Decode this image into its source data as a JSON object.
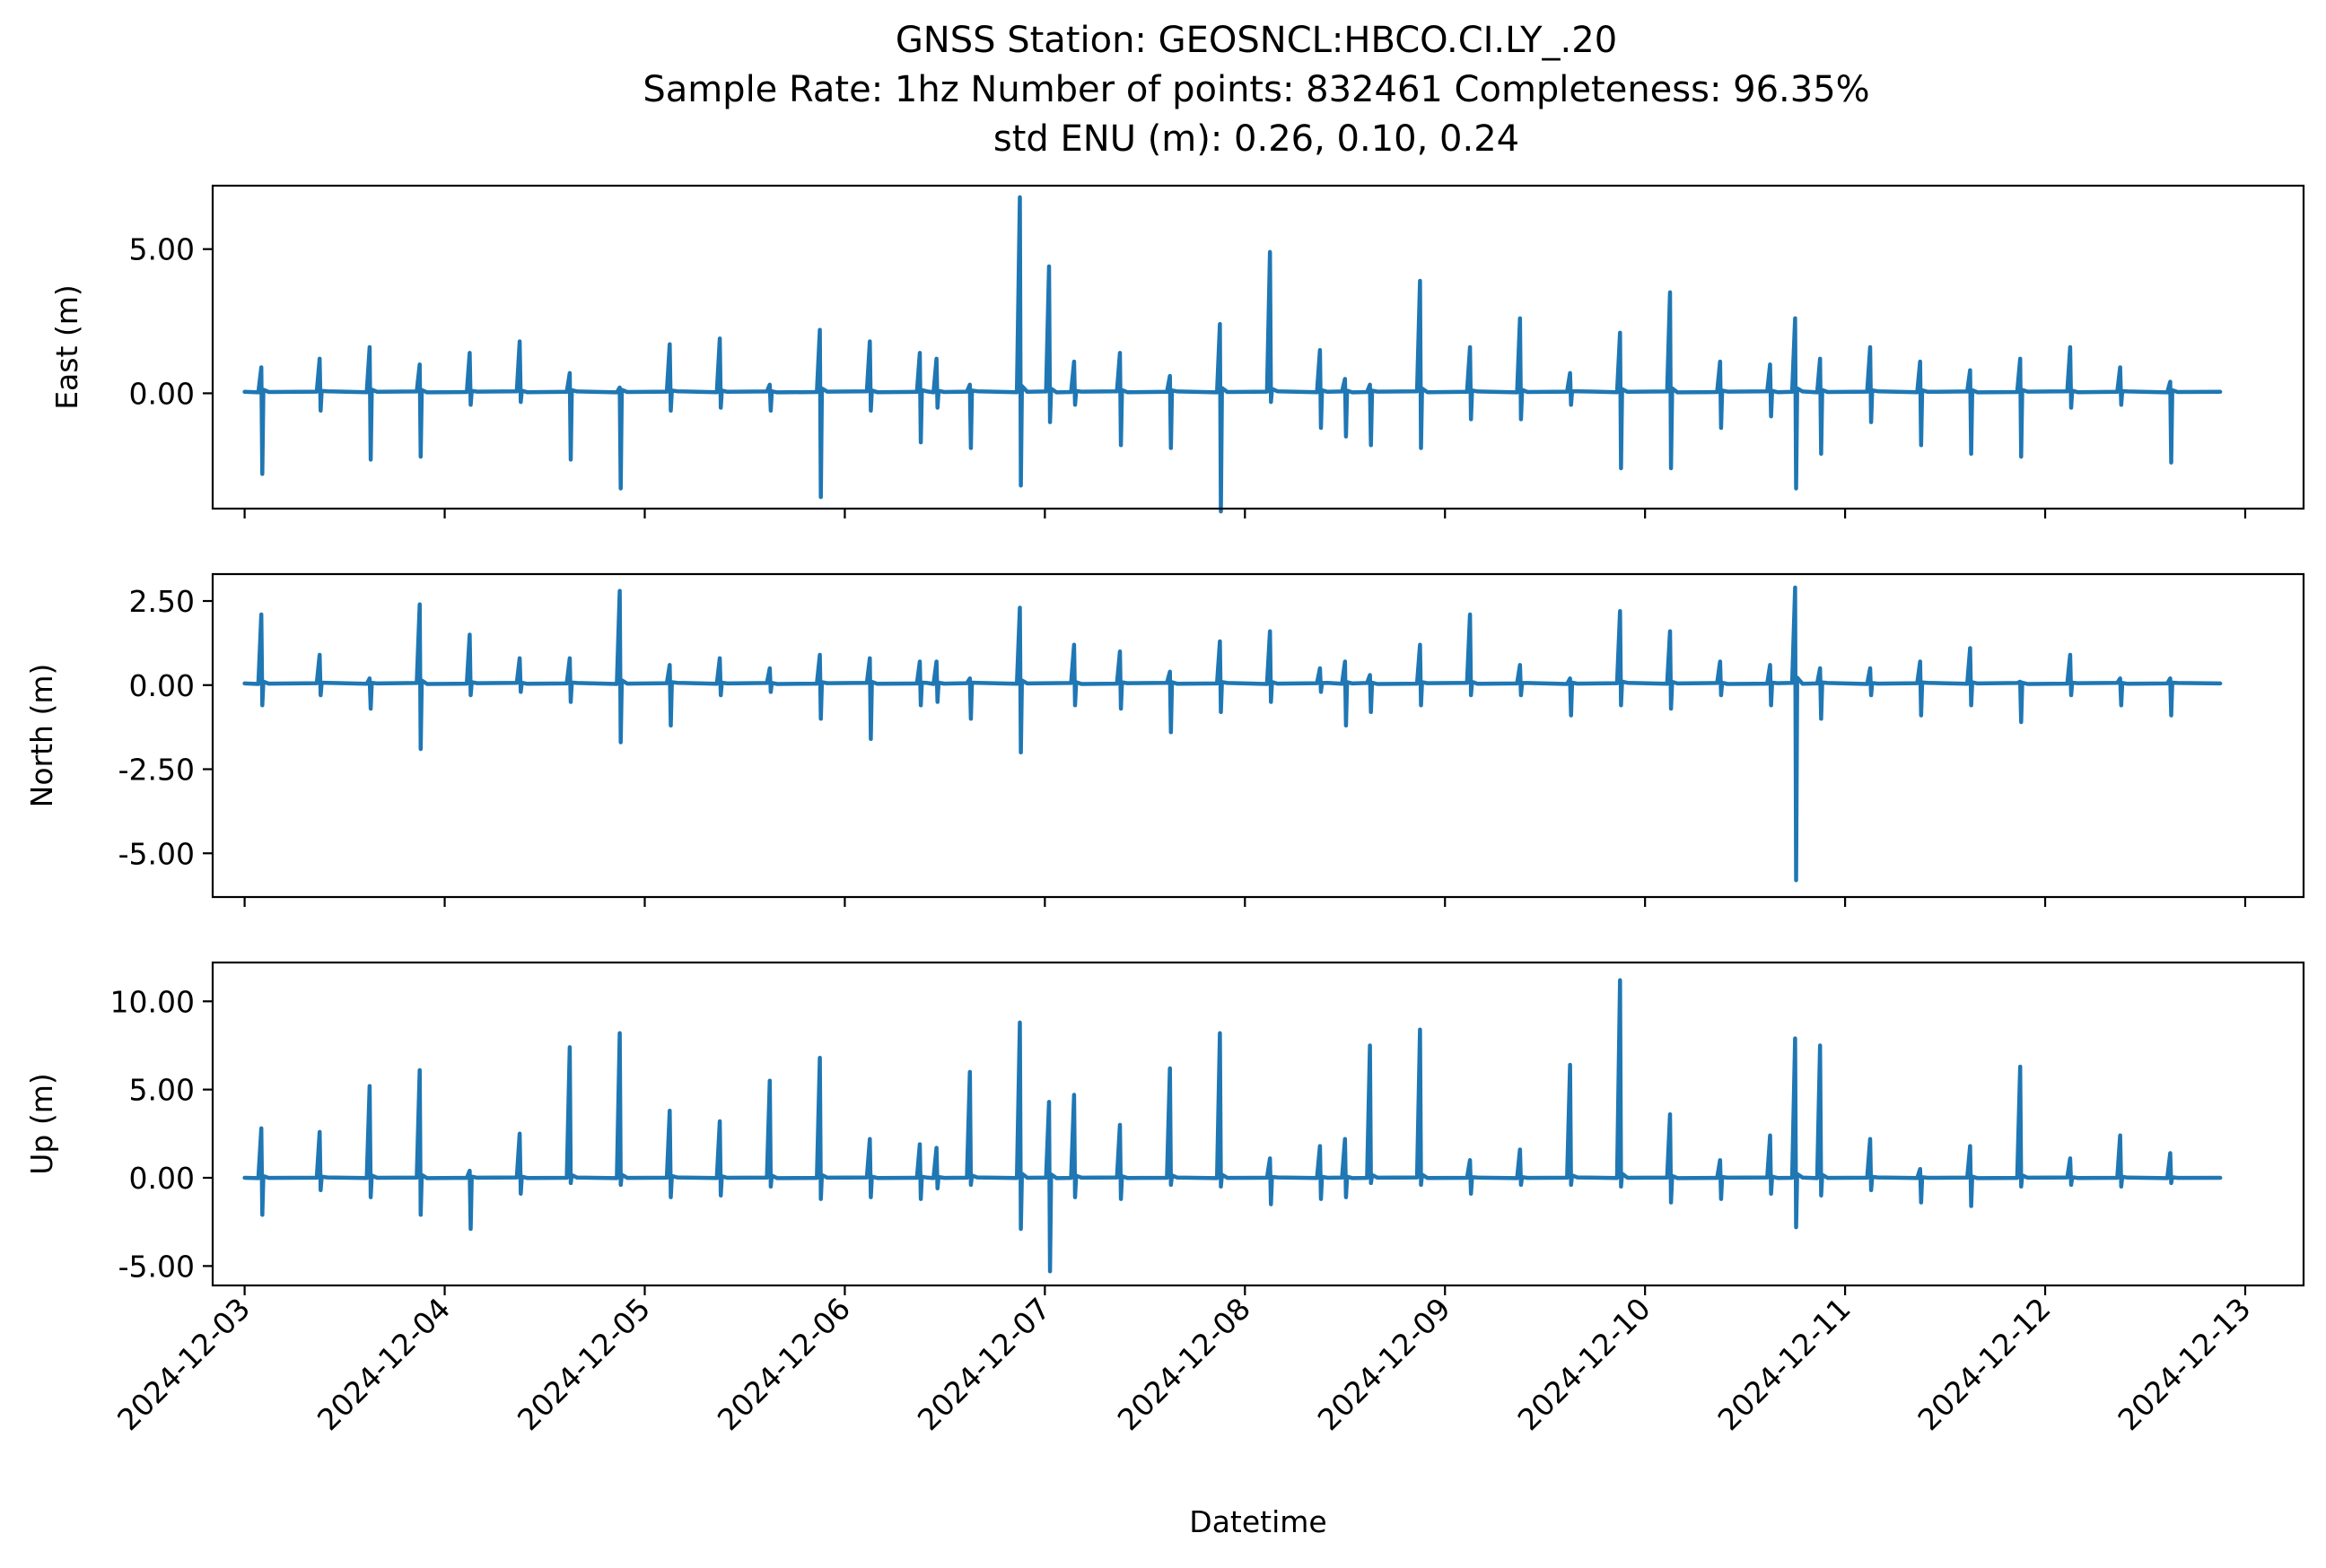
{
  "figure": {
    "title_lines": [
      "GNSS Station: GEOSNCL:HBCO.CI.LY_.20",
      "Sample Rate: 1hz   Number of points: 832461    Completeness:  96.35%",
      "std ENU (m):  0.26, 0.10, 0.24"
    ],
    "series_color": "#1f77b4"
  },
  "chart_data": [
    {
      "type": "line",
      "panel": "east",
      "ylabel": "East (m)",
      "xlabel": "",
      "ylim": [
        -4.0,
        7.2
      ],
      "xlim": [
        "2024-12-02T20:10",
        "2024-12-13T07:00"
      ],
      "yticks": [
        0,
        5
      ],
      "ytick_labels": [
        "0.00",
        "5.00"
      ],
      "xticks": [
        "2024-12-03",
        "2024-12-04",
        "2024-12-05",
        "2024-12-06",
        "2024-12-07",
        "2024-12-08",
        "2024-12-09",
        "2024-12-10",
        "2024-12-11",
        "2024-12-12",
        "2024-12-13"
      ],
      "xtick_labels_visible": false,
      "baseline": 0.05,
      "spikes": [
        [
          "2024-12-03T02:00",
          0.9,
          -2.8
        ],
        [
          "2024-12-03T09:00",
          1.2,
          -0.6
        ],
        [
          "2024-12-03T15:00",
          1.6,
          -2.3
        ],
        [
          "2024-12-03T21:00",
          1.0,
          -2.2
        ],
        [
          "2024-12-04T03:00",
          1.4,
          -0.4
        ],
        [
          "2024-12-04T09:00",
          1.8,
          -0.3
        ],
        [
          "2024-12-04T15:00",
          0.7,
          -2.3
        ],
        [
          "2024-12-04T21:00",
          0.2,
          -3.3
        ],
        [
          "2024-12-05T03:00",
          1.7,
          -0.6
        ],
        [
          "2024-12-05T09:00",
          1.9,
          -0.5
        ],
        [
          "2024-12-05T15:00",
          0.3,
          -0.6
        ],
        [
          "2024-12-05T21:00",
          2.2,
          -3.6
        ],
        [
          "2024-12-06T03:00",
          1.8,
          -0.6
        ],
        [
          "2024-12-06T09:00",
          1.4,
          -1.7
        ],
        [
          "2024-12-06T11:00",
          1.2,
          -0.5
        ],
        [
          "2024-12-06T15:00",
          0.3,
          -1.9
        ],
        [
          "2024-12-06T21:00",
          6.8,
          -3.2
        ],
        [
          "2024-12-07T00:30",
          4.4,
          -1.0
        ],
        [
          "2024-12-07T03:30",
          1.1,
          -0.4
        ],
        [
          "2024-12-07T09:00",
          1.4,
          -1.8
        ],
        [
          "2024-12-07T15:00",
          0.6,
          -1.9
        ],
        [
          "2024-12-07T21:00",
          2.4,
          -4.1
        ],
        [
          "2024-12-08T03:00",
          4.9,
          -0.3
        ],
        [
          "2024-12-08T09:00",
          1.5,
          -1.2
        ],
        [
          "2024-12-08T12:00",
          0.5,
          -1.5
        ],
        [
          "2024-12-08T15:00",
          0.3,
          -1.8
        ],
        [
          "2024-12-08T21:00",
          3.9,
          -1.9
        ],
        [
          "2024-12-09T03:00",
          1.6,
          -0.9
        ],
        [
          "2024-12-09T09:00",
          2.6,
          -0.9
        ],
        [
          "2024-12-09T15:00",
          0.7,
          -0.4
        ],
        [
          "2024-12-09T21:00",
          2.1,
          -2.6
        ],
        [
          "2024-12-10T03:00",
          3.5,
          -2.6
        ],
        [
          "2024-12-10T09:00",
          1.1,
          -1.2
        ],
        [
          "2024-12-10T15:00",
          1.0,
          -0.8
        ],
        [
          "2024-12-10T18:00",
          2.6,
          -3.3
        ],
        [
          "2024-12-10T21:00",
          1.2,
          -2.1
        ],
        [
          "2024-12-11T03:00",
          1.6,
          -1.0
        ],
        [
          "2024-12-11T09:00",
          1.1,
          -1.8
        ],
        [
          "2024-12-11T15:00",
          0.8,
          -2.1
        ],
        [
          "2024-12-11T21:00",
          1.2,
          -2.2
        ],
        [
          "2024-12-12T03:00",
          1.6,
          -0.5
        ],
        [
          "2024-12-12T09:00",
          0.9,
          -0.4
        ],
        [
          "2024-12-12T15:00",
          0.4,
          -2.4
        ]
      ]
    },
    {
      "type": "line",
      "panel": "north",
      "ylabel": "North (m)",
      "xlabel": "",
      "ylim": [
        -6.3,
        3.3
      ],
      "xlim": [
        "2024-12-02T20:10",
        "2024-12-13T07:00"
      ],
      "yticks": [
        -5,
        -2.5,
        0,
        2.5
      ],
      "ytick_labels": [
        "-5.00",
        "-2.50",
        "0.00",
        "2.50"
      ],
      "xticks": [
        "2024-12-03",
        "2024-12-04",
        "2024-12-05",
        "2024-12-06",
        "2024-12-07",
        "2024-12-08",
        "2024-12-09",
        "2024-12-10",
        "2024-12-11",
        "2024-12-12",
        "2024-12-13"
      ],
      "xtick_labels_visible": false,
      "baseline": 0.05,
      "spikes": [
        [
          "2024-12-03T02:00",
          2.1,
          -0.6
        ],
        [
          "2024-12-03T09:00",
          0.9,
          -0.3
        ],
        [
          "2024-12-03T15:00",
          0.2,
          -0.7
        ],
        [
          "2024-12-03T21:00",
          2.4,
          -1.9
        ],
        [
          "2024-12-04T03:00",
          1.5,
          -0.3
        ],
        [
          "2024-12-04T09:00",
          0.8,
          -0.2
        ],
        [
          "2024-12-04T15:00",
          0.8,
          -0.5
        ],
        [
          "2024-12-04T21:00",
          2.8,
          -1.7
        ],
        [
          "2024-12-05T03:00",
          0.6,
          -1.2
        ],
        [
          "2024-12-05T09:00",
          0.8,
          -0.3
        ],
        [
          "2024-12-05T15:00",
          0.5,
          -0.2
        ],
        [
          "2024-12-05T21:00",
          0.9,
          -1.0
        ],
        [
          "2024-12-06T03:00",
          0.8,
          -1.6
        ],
        [
          "2024-12-06T09:00",
          0.7,
          -0.6
        ],
        [
          "2024-12-06T11:00",
          0.7,
          -0.5
        ],
        [
          "2024-12-06T15:00",
          0.2,
          -1.0
        ],
        [
          "2024-12-06T21:00",
          2.3,
          -2.0
        ],
        [
          "2024-12-07T03:30",
          1.2,
          -0.6
        ],
        [
          "2024-12-07T09:00",
          1.0,
          -0.7
        ],
        [
          "2024-12-07T15:00",
          0.4,
          -1.4
        ],
        [
          "2024-12-07T21:00",
          1.3,
          -0.8
        ],
        [
          "2024-12-08T03:00",
          1.6,
          -0.5
        ],
        [
          "2024-12-08T09:00",
          0.5,
          -0.2
        ],
        [
          "2024-12-08T12:00",
          0.7,
          -1.2
        ],
        [
          "2024-12-08T15:00",
          0.3,
          -0.8
        ],
        [
          "2024-12-08T21:00",
          1.2,
          -0.6
        ],
        [
          "2024-12-09T03:00",
          2.1,
          -0.3
        ],
        [
          "2024-12-09T09:00",
          0.6,
          -0.3
        ],
        [
          "2024-12-09T15:00",
          0.2,
          -0.9
        ],
        [
          "2024-12-09T21:00",
          2.2,
          -0.6
        ],
        [
          "2024-12-10T03:00",
          1.6,
          -0.7
        ],
        [
          "2024-12-10T09:00",
          0.7,
          -0.3
        ],
        [
          "2024-12-10T15:00",
          0.6,
          -0.6
        ],
        [
          "2024-12-10T18:00",
          2.9,
          -5.8
        ],
        [
          "2024-12-10T21:00",
          0.5,
          -1.0
        ],
        [
          "2024-12-11T03:00",
          0.5,
          -0.3
        ],
        [
          "2024-12-11T09:00",
          0.7,
          -0.9
        ],
        [
          "2024-12-11T15:00",
          1.1,
          -0.6
        ],
        [
          "2024-12-11T21:00",
          0.1,
          -1.1
        ],
        [
          "2024-12-12T03:00",
          0.9,
          -0.3
        ],
        [
          "2024-12-12T09:00",
          0.2,
          -0.6
        ],
        [
          "2024-12-12T15:00",
          0.2,
          -0.9
        ]
      ]
    },
    {
      "type": "line",
      "panel": "up",
      "ylabel": "Up (m)",
      "xlabel": "Datetime",
      "ylim": [
        -6.1,
        12.2
      ],
      "xlim": [
        "2024-12-02T20:10",
        "2024-12-13T07:00"
      ],
      "yticks": [
        -5,
        0,
        5,
        10
      ],
      "ytick_labels": [
        "-5.00",
        "0.00",
        "5.00",
        "10.00"
      ],
      "xticks": [
        "2024-12-03",
        "2024-12-04",
        "2024-12-05",
        "2024-12-06",
        "2024-12-07",
        "2024-12-08",
        "2024-12-09",
        "2024-12-10",
        "2024-12-11",
        "2024-12-12",
        "2024-12-13"
      ],
      "xtick_labels": [
        "2024-12-03",
        "2024-12-04",
        "2024-12-05",
        "2024-12-06",
        "2024-12-07",
        "2024-12-08",
        "2024-12-09",
        "2024-12-10",
        "2024-12-11",
        "2024-12-12",
        "2024-12-13"
      ],
      "xtick_labels_visible": true,
      "baseline": 0.0,
      "spikes": [
        [
          "2024-12-03T02:00",
          2.8,
          -2.1
        ],
        [
          "2024-12-03T09:00",
          2.6,
          -0.7
        ],
        [
          "2024-12-03T15:00",
          5.2,
          -1.1
        ],
        [
          "2024-12-03T21:00",
          6.1,
          -2.1
        ],
        [
          "2024-12-04T03:00",
          0.4,
          -2.9
        ],
        [
          "2024-12-04T09:00",
          2.5,
          -0.9
        ],
        [
          "2024-12-04T15:00",
          7.4,
          -0.3
        ],
        [
          "2024-12-04T21:00",
          8.2,
          -0.4
        ],
        [
          "2024-12-05T03:00",
          3.8,
          -1.1
        ],
        [
          "2024-12-05T09:00",
          3.2,
          -1.0
        ],
        [
          "2024-12-05T15:00",
          5.5,
          -0.5
        ],
        [
          "2024-12-05T21:00",
          6.8,
          -1.2
        ],
        [
          "2024-12-06T03:00",
          2.2,
          -1.1
        ],
        [
          "2024-12-06T09:00",
          1.9,
          -1.2
        ],
        [
          "2024-12-06T11:00",
          1.7,
          -0.6
        ],
        [
          "2024-12-06T15:00",
          6.0,
          -0.4
        ],
        [
          "2024-12-06T21:00",
          8.8,
          -2.9
        ],
        [
          "2024-12-07T00:30",
          4.3,
          -5.3
        ],
        [
          "2024-12-07T03:30",
          4.7,
          -1.1
        ],
        [
          "2024-12-07T09:00",
          3.0,
          -1.2
        ],
        [
          "2024-12-07T15:00",
          6.2,
          -0.4
        ],
        [
          "2024-12-07T21:00",
          8.2,
          -0.5
        ],
        [
          "2024-12-08T03:00",
          1.1,
          -1.5
        ],
        [
          "2024-12-08T09:00",
          1.8,
          -1.2
        ],
        [
          "2024-12-08T12:00",
          2.2,
          -1.1
        ],
        [
          "2024-12-08T15:00",
          7.5,
          -0.3
        ],
        [
          "2024-12-08T21:00",
          8.4,
          -0.4
        ],
        [
          "2024-12-09T03:00",
          1.0,
          -0.9
        ],
        [
          "2024-12-09T09:00",
          1.6,
          -0.4
        ],
        [
          "2024-12-09T15:00",
          6.4,
          -0.4
        ],
        [
          "2024-12-09T21:00",
          11.2,
          -0.5
        ],
        [
          "2024-12-10T03:00",
          3.6,
          -1.4
        ],
        [
          "2024-12-10T09:00",
          1.0,
          -1.2
        ],
        [
          "2024-12-10T15:00",
          2.4,
          -0.9
        ],
        [
          "2024-12-10T18:00",
          7.9,
          -2.8
        ],
        [
          "2024-12-10T21:00",
          7.5,
          -1.0
        ],
        [
          "2024-12-11T03:00",
          2.2,
          -0.7
        ],
        [
          "2024-12-11T09:00",
          0.5,
          -1.4
        ],
        [
          "2024-12-11T15:00",
          1.8,
          -1.6
        ],
        [
          "2024-12-11T21:00",
          6.3,
          -0.5
        ],
        [
          "2024-12-12T03:00",
          1.1,
          -0.4
        ],
        [
          "2024-12-12T09:00",
          2.4,
          -0.5
        ],
        [
          "2024-12-12T15:00",
          1.4,
          -0.3
        ]
      ]
    }
  ]
}
